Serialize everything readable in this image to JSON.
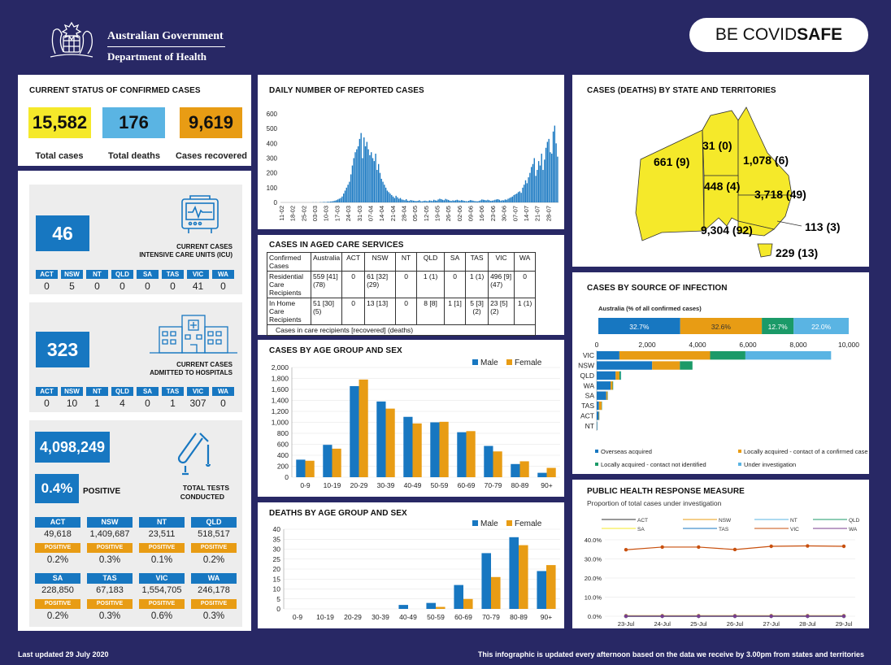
{
  "header": {
    "gov_line1": "Australian Government",
    "gov_line2": "Department of Health",
    "covidsafe_be": "BE COVID",
    "covidsafe_safe": "SAFE"
  },
  "current_status": {
    "title": "CURRENT STATUS OF CONFIRMED CASES",
    "total_cases": "15,582",
    "total_cases_label": "Total cases",
    "total_deaths": "176",
    "total_deaths_label": "Total deaths",
    "recovered": "9,619",
    "recovered_label": "Cases recovered",
    "colors": {
      "cases": "#f5e92a",
      "deaths": "#5ab4e3",
      "recovered": "#e89c14"
    }
  },
  "states": [
    "ACT",
    "NSW",
    "NT",
    "QLD",
    "SA",
    "TAS",
    "VIC",
    "WA"
  ],
  "icu": {
    "value": "46",
    "label1": "CURRENT CASES",
    "label2": "INTENSIVE CARE UNITS (ICU)",
    "by_state": [
      "0",
      "5",
      "0",
      "0",
      "0",
      "0",
      "41",
      "0"
    ]
  },
  "hospital": {
    "value": "323",
    "label1": "CURRENT CASES",
    "label2": "ADMITTED TO HOSPITALS",
    "by_state": [
      "0",
      "10",
      "1",
      "4",
      "0",
      "1",
      "307",
      "0"
    ]
  },
  "tests": {
    "value": "4,098,249",
    "percent": "0.4%",
    "positive_label": "POSITIVE",
    "label1": "TOTAL TESTS",
    "label2": "CONDUCTED",
    "badge": "POSITIVE",
    "rows": [
      [
        {
          "s": "ACT",
          "n": "49,618",
          "p": "0.2%"
        },
        {
          "s": "NSW",
          "n": "1,409,687",
          "p": "0.3%"
        },
        {
          "s": "NT",
          "n": "23,511",
          "p": "0.1%"
        },
        {
          "s": "QLD",
          "n": "518,517",
          "p": "0.2%"
        }
      ],
      [
        {
          "s": "SA",
          "n": "228,850",
          "p": "0.2%"
        },
        {
          "s": "TAS",
          "n": "67,183",
          "p": "0.3%"
        },
        {
          "s": "VIC",
          "n": "1,554,705",
          "p": "0.6%"
        },
        {
          "s": "WA",
          "n": "246,178",
          "p": "0.3%"
        }
      ]
    ]
  },
  "daily": {
    "title": "DAILY NUMBER OF REPORTED CASES",
    "dates": [
      "11-02",
      "18-02",
      "25-02",
      "03-03",
      "10-03",
      "17-03",
      "24-03",
      "31-03",
      "07-04",
      "14-04",
      "21-04",
      "28-04",
      "05-05",
      "12-05",
      "19-05",
      "26-05",
      "02-06",
      "09-06",
      "16-06",
      "23-06",
      "30-06",
      "07-07",
      "14-07",
      "21-07",
      "28-07"
    ]
  },
  "aged": {
    "title": "CASES IN AGED CARE SERVICES",
    "headers": [
      "Confirmed Cases",
      "Australia",
      "ACT",
      "NSW",
      "NT",
      "QLD",
      "SA",
      "TAS",
      "VIC",
      "WA"
    ],
    "rows": [
      [
        "Residential Care Recipients",
        "559 [41] (78)",
        "0",
        "61 [32] (29)",
        "0",
        "1 (1)",
        "0",
        "1 (1)",
        "496 [9] (47)",
        "0"
      ],
      [
        "In Home Care Recipients",
        "51 [30] (5)",
        "0",
        "13 [13]",
        "0",
        "8 [8]",
        "1 [1]",
        "5 [3] (2)",
        "23 [5] (2)",
        "1 (1)"
      ]
    ],
    "note": "Cases in care recipients [recovered] (deaths)"
  },
  "age_cases": {
    "title": "CASES BY AGE GROUP AND SEX",
    "male": "Male",
    "female": "Female"
  },
  "age_deaths": {
    "title": "DEATHS BY AGE GROUP AND SEX",
    "male": "Male",
    "female": "Female"
  },
  "map": {
    "title": "CASES (DEATHS) BY STATE AND TERRITORIES",
    "wa": "661 (9)",
    "nt": "31 (0)",
    "qld": "1,078 (6)",
    "sa": "448 (4)",
    "nsw": "3,718 (49)",
    "act": "113 (3)",
    "vic": "9,304 (92)",
    "tas": "229 (13)"
  },
  "source": {
    "title": "CASES BY SOURCE OF INFECTION",
    "subtitle": "Australia (% of all confirmed cases)",
    "legend": [
      "Overseas acquired",
      "Locally acquired - contact of a confirmed case",
      "Locally acquired - contact not identified",
      "Under investigation"
    ]
  },
  "response": {
    "title": "PUBLIC HEALTH RESPONSE MEASURE",
    "subtitle": "Proportion of total cases under investigation"
  },
  "footer": {
    "left": "Last updated 29 July 2020",
    "right": "This infographic is updated every afternoon based on the data we receive by 3.00pm from states and territories"
  },
  "chart_data": [
    {
      "type": "bar",
      "title": "DAILY NUMBER OF REPORTED CASES",
      "ylim": [
        0,
        600
      ],
      "yticks": [
        "0",
        "100",
        "200",
        "300",
        "400",
        "500",
        "600"
      ],
      "x_ticks": [
        "11-02",
        "18-02",
        "25-02",
        "03-03",
        "10-03",
        "17-03",
        "24-03",
        "31-03",
        "07-04",
        "14-04",
        "21-04",
        "28-04",
        "05-05",
        "12-05",
        "19-05",
        "26-05",
        "02-06",
        "09-06",
        "16-06",
        "23-06",
        "30-06",
        "07-07",
        "14-07",
        "21-07",
        "28-07"
      ],
      "values": [
        0,
        0,
        0,
        0,
        0,
        0,
        0,
        0,
        0,
        0,
        0,
        0,
        0,
        0,
        0,
        0,
        0,
        0,
        0,
        0,
        0,
        0,
        1,
        0,
        1,
        0,
        0,
        2,
        1,
        3,
        3,
        2,
        5,
        4,
        6,
        7,
        9,
        12,
        15,
        20,
        25,
        30,
        40,
        60,
        80,
        100,
        120,
        140,
        190,
        250,
        300,
        340,
        360,
        380,
        430,
        470,
        300,
        440,
        380,
        410,
        360,
        320,
        340,
        300,
        280,
        330,
        220,
        260,
        200,
        160,
        140,
        120,
        100,
        80,
        70,
        60,
        50,
        40,
        30,
        45,
        35,
        25,
        30,
        20,
        18,
        15,
        22,
        12,
        10,
        16,
        14,
        12,
        10,
        9,
        11,
        15,
        8,
        7,
        10,
        12,
        9,
        8,
        14,
        12,
        10,
        18,
        14,
        12,
        20,
        25,
        22,
        18,
        15,
        24,
        20,
        17,
        12,
        10,
        14,
        12,
        15,
        18,
        14,
        12,
        16,
        13,
        10,
        9,
        8,
        11,
        16,
        14,
        12,
        9,
        8,
        7,
        10,
        14,
        20,
        18,
        16,
        14,
        18,
        15,
        10,
        12,
        14,
        18,
        20,
        22,
        18,
        12,
        15,
        14,
        20,
        18,
        25,
        30,
        35,
        40,
        50,
        55,
        60,
        70,
        75,
        65,
        100,
        120,
        150,
        130,
        170,
        200,
        240,
        260,
        300,
        180,
        220,
        280,
        250,
        330,
        220,
        290,
        370,
        410,
        430,
        340,
        330,
        480,
        520,
        400,
        310
      ]
    },
    {
      "type": "bar",
      "title": "CASES BY AGE GROUP AND SEX",
      "categories": [
        "0-9",
        "10-19",
        "20-29",
        "30-39",
        "40-49",
        "50-59",
        "60-69",
        "70-79",
        "80-89",
        "90+"
      ],
      "ylim": [
        0,
        2000
      ],
      "yticks": [
        "0",
        "200",
        "400",
        "600",
        "800",
        "1,000",
        "1,200",
        "1,400",
        "1,600",
        "1,800",
        "2,000"
      ],
      "series": [
        {
          "name": "Male",
          "color": "#1777c1",
          "values": [
            320,
            590,
            1660,
            1380,
            1100,
            1000,
            820,
            570,
            240,
            80
          ]
        },
        {
          "name": "Female",
          "color": "#e89c14",
          "values": [
            300,
            520,
            1780,
            1250,
            980,
            1010,
            840,
            470,
            290,
            170
          ]
        }
      ]
    },
    {
      "type": "bar",
      "title": "DEATHS BY AGE GROUP AND SEX",
      "categories": [
        "0-9",
        "10-19",
        "20-29",
        "30-39",
        "40-49",
        "50-59",
        "60-69",
        "70-79",
        "80-89",
        "90+"
      ],
      "ylim": [
        0,
        40
      ],
      "yticks": [
        "0",
        "5",
        "10",
        "15",
        "20",
        "25",
        "30",
        "35",
        "40"
      ],
      "series": [
        {
          "name": "Male",
          "color": "#1777c1",
          "values": [
            0,
            0,
            0,
            0,
            2,
            3,
            12,
            28,
            36,
            19
          ]
        },
        {
          "name": "Female",
          "color": "#e89c14",
          "values": [
            0,
            0,
            0,
            0,
            0,
            1,
            5,
            16,
            32,
            22
          ]
        }
      ]
    },
    {
      "type": "bar",
      "title": "CASES BY SOURCE OF INFECTION",
      "subtitle": "Australia (% of all confirmed cases)",
      "australia_pct": [
        {
          "label": "32.7%",
          "value": 32.7,
          "color": "#1777c1"
        },
        {
          "label": "32.6%",
          "value": 32.6,
          "color": "#e89c14"
        },
        {
          "label": "12.7%",
          "value": 12.7,
          "color": "#1b9a68"
        },
        {
          "label": "22.0%",
          "value": 22.0,
          "color": "#5ab4e3"
        }
      ],
      "xlim": [
        0,
        10000
      ],
      "xticks": [
        "0",
        "2,000",
        "4,000",
        "6,000",
        "8,000",
        "10,000"
      ],
      "categories": [
        "VIC",
        "NSW",
        "QLD",
        "WA",
        "SA",
        "TAS",
        "ACT",
        "NT"
      ],
      "series": [
        {
          "name": "Overseas acquired",
          "color": "#1777c1",
          "values": [
            900,
            2200,
            750,
            550,
            380,
            90,
            80,
            20
          ]
        },
        {
          "name": "Locally acquired - contact of a confirmed case",
          "color": "#e89c14",
          "values": [
            3600,
            1100,
            150,
            80,
            50,
            110,
            20,
            5
          ]
        },
        {
          "name": "Locally acquired - contact not identified",
          "color": "#1b9a68",
          "values": [
            1400,
            500,
            60,
            20,
            10,
            10,
            5,
            2
          ]
        },
        {
          "name": "Under investigation",
          "color": "#5ab4e3",
          "values": [
            3400,
            0,
            10,
            10,
            5,
            5,
            5,
            2
          ]
        }
      ]
    },
    {
      "type": "line",
      "title": "PUBLIC HEALTH RESPONSE MEASURE",
      "subtitle": "Proportion of total cases under investigation",
      "x": [
        "23-Jul",
        "24-Jul",
        "25-Jul",
        "26-Jul",
        "27-Jul",
        "28-Jul",
        "29-Jul"
      ],
      "ylim": [
        0,
        40
      ],
      "yticks": [
        "0.0%",
        "10.0%",
        "20.0%",
        "30.0%",
        "40.0%"
      ],
      "series": [
        {
          "name": "ACT",
          "color": "#333333",
          "values": [
            0,
            0,
            0,
            0,
            0,
            0,
            0
          ]
        },
        {
          "name": "NSW",
          "color": "#e89c14",
          "values": [
            0.3,
            0.3,
            0.3,
            0.3,
            0.3,
            0.3,
            0.3
          ]
        },
        {
          "name": "NT",
          "color": "#5ab4e3",
          "values": [
            0,
            0,
            0,
            0,
            0,
            0,
            0
          ]
        },
        {
          "name": "QLD",
          "color": "#1b9a68",
          "values": [
            0,
            0,
            0,
            0,
            0,
            0,
            0
          ]
        },
        {
          "name": "SA",
          "color": "#f5e92a",
          "values": [
            0,
            0,
            0,
            0,
            0,
            0,
            0
          ]
        },
        {
          "name": "TAS",
          "color": "#1777c1",
          "values": [
            0,
            0,
            0,
            0,
            0,
            0,
            0
          ]
        },
        {
          "name": "VIC",
          "color": "#c8500e",
          "values": [
            34.8,
            36.2,
            36.2,
            34.9,
            36.6,
            36.8,
            36.6
          ]
        },
        {
          "name": "WA",
          "color": "#7a3d8f",
          "values": [
            0,
            0,
            0,
            0,
            0,
            0,
            0
          ]
        }
      ]
    }
  ]
}
